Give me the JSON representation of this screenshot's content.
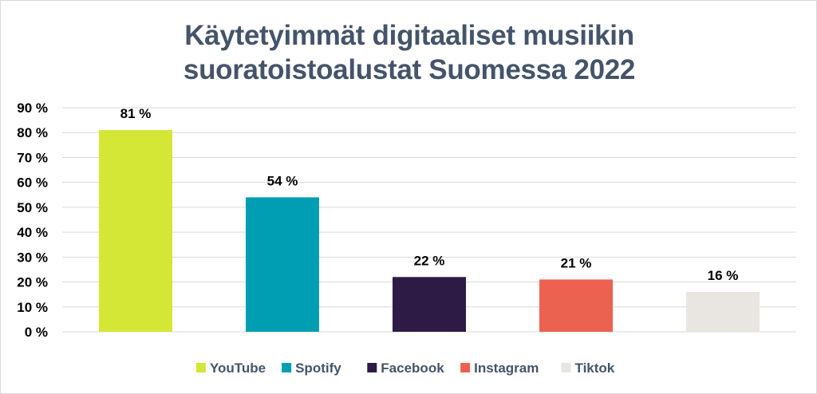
{
  "chart_data": {
    "type": "bar",
    "title_lines": [
      "Käytetyimmät digitaaliset musiikin",
      "suoratoistoalustat Suomessa 2022"
    ],
    "categories": [
      "YouTube",
      "Spotify",
      "Facebook",
      "Instagram",
      "Tiktok"
    ],
    "values": [
      81,
      54,
      22,
      21,
      16
    ],
    "data_labels": [
      "81 %",
      "54 %",
      "22 %",
      "21 %",
      "16 %"
    ],
    "colors": [
      "#d4e636",
      "#009eb3",
      "#2d1b45",
      "#eb6250",
      "#e9e5e0"
    ],
    "ylim": [
      0,
      90
    ],
    "yticks": [
      0,
      10,
      20,
      30,
      40,
      50,
      60,
      70,
      80,
      90
    ],
    "ytick_labels": [
      "0 %",
      "10 %",
      "20 %",
      "30 %",
      "40 %",
      "50 %",
      "60 %",
      "70 %",
      "80 %",
      "90 %"
    ],
    "grid": true,
    "legend": {
      "position": "bottom",
      "entries": [
        "YouTube",
        "Spotify",
        "Facebook",
        "Instagram",
        "Tiktok"
      ]
    }
  }
}
